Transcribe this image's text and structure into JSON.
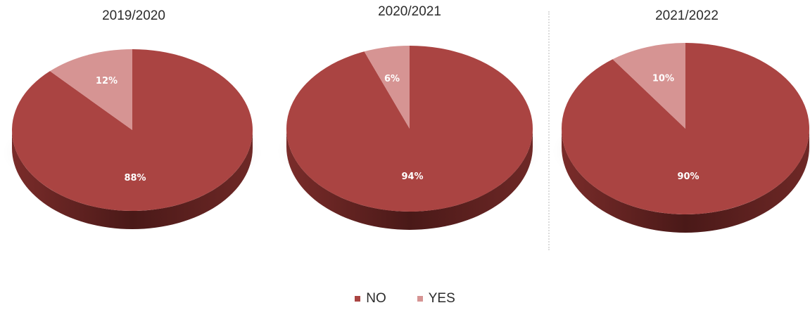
{
  "colors": {
    "no": "#aa4442",
    "yes": "#d69493",
    "no_dark": "#5c201f",
    "yes_dark": "#9a6463"
  },
  "chart_data": [
    {
      "type": "pie",
      "title": "2019/2020",
      "categories": [
        "NO",
        "YES"
      ],
      "values": [
        88,
        12
      ],
      "labels": [
        "88%",
        "12%"
      ]
    },
    {
      "type": "pie",
      "title": "2020/2021",
      "categories": [
        "NO",
        "YES"
      ],
      "values": [
        94,
        6
      ],
      "labels": [
        "94%",
        "6%"
      ]
    },
    {
      "type": "pie",
      "title": "2021/2022",
      "categories": [
        "NO",
        "YES"
      ],
      "values": [
        90,
        10
      ],
      "labels": [
        "90%",
        "10%"
      ]
    }
  ],
  "legend": {
    "placement": "bottom",
    "items": [
      {
        "label": "NO",
        "color": "#aa4442"
      },
      {
        "label": "YES",
        "color": "#d69493"
      }
    ]
  }
}
